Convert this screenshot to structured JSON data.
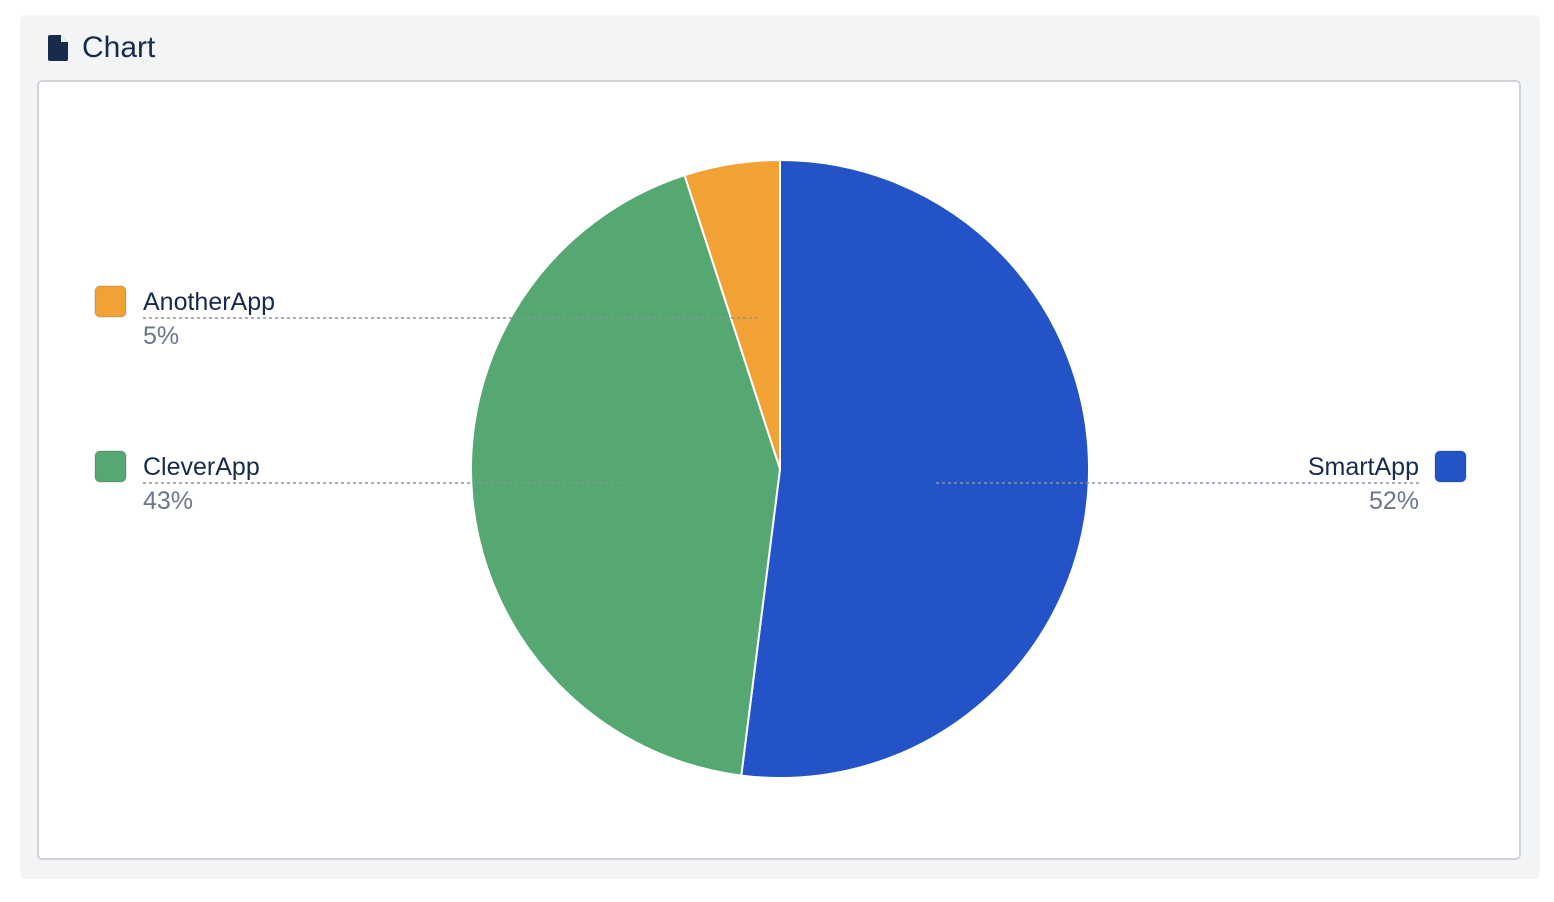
{
  "panel": {
    "title": "Chart",
    "icon": "document-icon"
  },
  "colors": {
    "SmartApp": "#2453c8",
    "CleverApp": "#56a873",
    "AnotherApp": "#f2a235"
  },
  "chart_data": {
    "type": "pie",
    "title": "",
    "slices": [
      {
        "label": "SmartApp",
        "value": 52,
        "display": "52%"
      },
      {
        "label": "CleverApp",
        "value": 43,
        "display": "43%"
      },
      {
        "label": "AnotherApp",
        "value": 5,
        "display": "5%"
      }
    ],
    "start_angle_deg": 0,
    "direction": "clockwise"
  }
}
